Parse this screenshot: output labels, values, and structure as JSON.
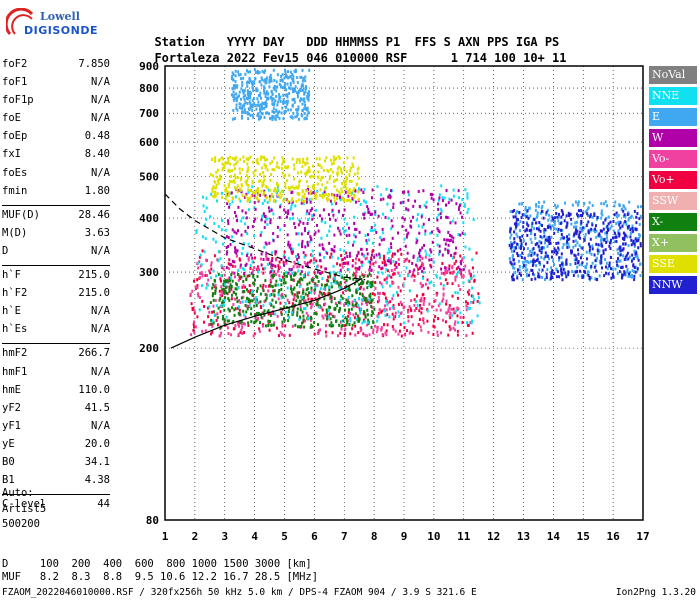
{
  "logo": {
    "top": "Lowell",
    "bottom": "DIGISONDE"
  },
  "header": {
    "labels": [
      "Station",
      "YYYY",
      "DAY",
      "DDD",
      "HHMMSS",
      "P1",
      "FFS",
      "S",
      "AXN",
      "PPS",
      "IGA",
      "PS"
    ],
    "values": [
      "Fortaleza",
      "2022",
      "Fev15",
      "046",
      "010000",
      "RSF",
      "1",
      "714",
      "100",
      "10+",
      "11"
    ]
  },
  "params": [
    {
      "k": "foF2",
      "v": "7.850"
    },
    {
      "k": "foF1",
      "v": "N/A"
    },
    {
      "k": "foF1p",
      "v": "N/A"
    },
    {
      "k": "foE",
      "v": "N/A"
    },
    {
      "k": "foEp",
      "v": "0.48"
    },
    {
      "k": "fxI",
      "v": "8.40"
    },
    {
      "k": "foEs",
      "v": "N/A"
    },
    {
      "k": "fmin",
      "v": "1.80"
    },
    {
      "sep": true
    },
    {
      "k": "MUF(D)",
      "v": "28.46"
    },
    {
      "k": "M(D)",
      "v": "3.63"
    },
    {
      "k": "D",
      "v": "N/A"
    },
    {
      "sep": true
    },
    {
      "k": "h`F",
      "v": "215.0"
    },
    {
      "k": "h`F2",
      "v": "215.0"
    },
    {
      "k": "h`E",
      "v": "N/A"
    },
    {
      "k": "h`Es",
      "v": "N/A"
    },
    {
      "sep": true
    },
    {
      "k": "hmF2",
      "v": "266.7"
    },
    {
      "k": "hmF1",
      "v": "N/A"
    },
    {
      "k": "hmE",
      "v": "110.0"
    },
    {
      "k": "yF2",
      "v": "41.5"
    },
    {
      "k": "yF1",
      "v": "N/A"
    },
    {
      "k": "yE",
      "v": "20.0"
    },
    {
      "k": "B0",
      "v": "34.1"
    },
    {
      "k": "B1",
      "v": "4.38"
    },
    {
      "sep": true
    },
    {
      "k": "C-level",
      "v": "44"
    }
  ],
  "auto": [
    "Auto:",
    "Artist5",
    "500200"
  ],
  "legend": [
    {
      "label": "NoVal",
      "color": "#808080"
    },
    {
      "label": "NNE",
      "color": "#10e0f0"
    },
    {
      "label": "E",
      "color": "#40a8f0"
    },
    {
      "label": "W",
      "color": "#b000a8"
    },
    {
      "label": "Vo-",
      "color": "#f040a0"
    },
    {
      "label": "Vo+",
      "color": "#f00040"
    },
    {
      "label": "SSW",
      "color": "#f0b0b0"
    },
    {
      "label": "X-",
      "color": "#108010"
    },
    {
      "label": "X+",
      "color": "#90c060"
    },
    {
      "label": "SSE",
      "color": "#e0e000"
    },
    {
      "label": "NNW",
      "color": "#2020d0"
    }
  ],
  "footer": {
    "line1": "D     100  200  400  600  800 1000 1500 3000 [km]",
    "line2": "MUF   8.2  8.3  8.8  9.5 10.6 12.2 16.7 28.5 [MHz]",
    "line3": "FZAOM_2022046010000.RSF / 320fx256h 50 kHz 5.0 km / DPS-4 FZAOM 904 / 3.9 S 321.6 E",
    "line3r": "Ion2Png 1.3.20"
  },
  "chart_data": {
    "type": "scatter",
    "title": "",
    "xlabel": "",
    "ylabel": "",
    "xlim": [
      1,
      17
    ],
    "ylim": [
      80,
      900
    ],
    "x_ticks": [
      "1",
      "2",
      "3",
      "4",
      "5",
      "6",
      "7",
      "8",
      "9",
      "10",
      "11",
      "12",
      "13",
      "14",
      "15",
      "16",
      "17"
    ],
    "y_ticks": [
      "80",
      "200",
      "300",
      "400",
      "500",
      "600",
      "700",
      "800",
      "900"
    ],
    "y_scale": "log",
    "grid": true,
    "legend_position": "right",
    "traces": [
      {
        "name": "trace_solid",
        "style": "solid",
        "x": [
          1.2,
          2.0,
          3.0,
          4.0,
          5.0,
          6.0,
          7.0,
          7.6
        ],
        "y": [
          200,
          212,
          226,
          237,
          247,
          258,
          275,
          290
        ]
      },
      {
        "name": "trace_dashed",
        "style": "dashed",
        "x": [
          1.0,
          1.5,
          2.0,
          3.0,
          4.0,
          5.0,
          6.0,
          7.0,
          7.7
        ],
        "y": [
          455,
          420,
          395,
          360,
          340,
          320,
          305,
          292,
          288
        ]
      }
    ],
    "echo_regions": [
      {
        "color": "#f00040",
        "x": [
          1.8,
          11.5
        ],
        "y": [
          215,
          340
        ]
      },
      {
        "color": "#f040a0",
        "x": [
          1.8,
          11.2
        ],
        "y": [
          215,
          330
        ]
      },
      {
        "color": "#108010",
        "x": [
          2.5,
          8.0
        ],
        "y": [
          225,
          300
        ]
      },
      {
        "color": "#10e0f0",
        "x": [
          2.0,
          11.5
        ],
        "y": [
          230,
          480
        ]
      },
      {
        "color": "#40a8f0",
        "x": [
          12.5,
          16.9
        ],
        "y": [
          290,
          440
        ]
      },
      {
        "color": "#2020d0",
        "x": [
          12.5,
          16.9
        ],
        "y": [
          290,
          420
        ]
      },
      {
        "color": "#b000a8",
        "x": [
          3.0,
          11.0
        ],
        "y": [
          300,
          470
        ]
      },
      {
        "color": "#e0e000",
        "x": [
          2.5,
          7.5
        ],
        "y": [
          440,
          560
        ]
      },
      {
        "color": "#40a8f0",
        "x": [
          3.2,
          5.8
        ],
        "y": [
          680,
          890
        ]
      }
    ]
  }
}
